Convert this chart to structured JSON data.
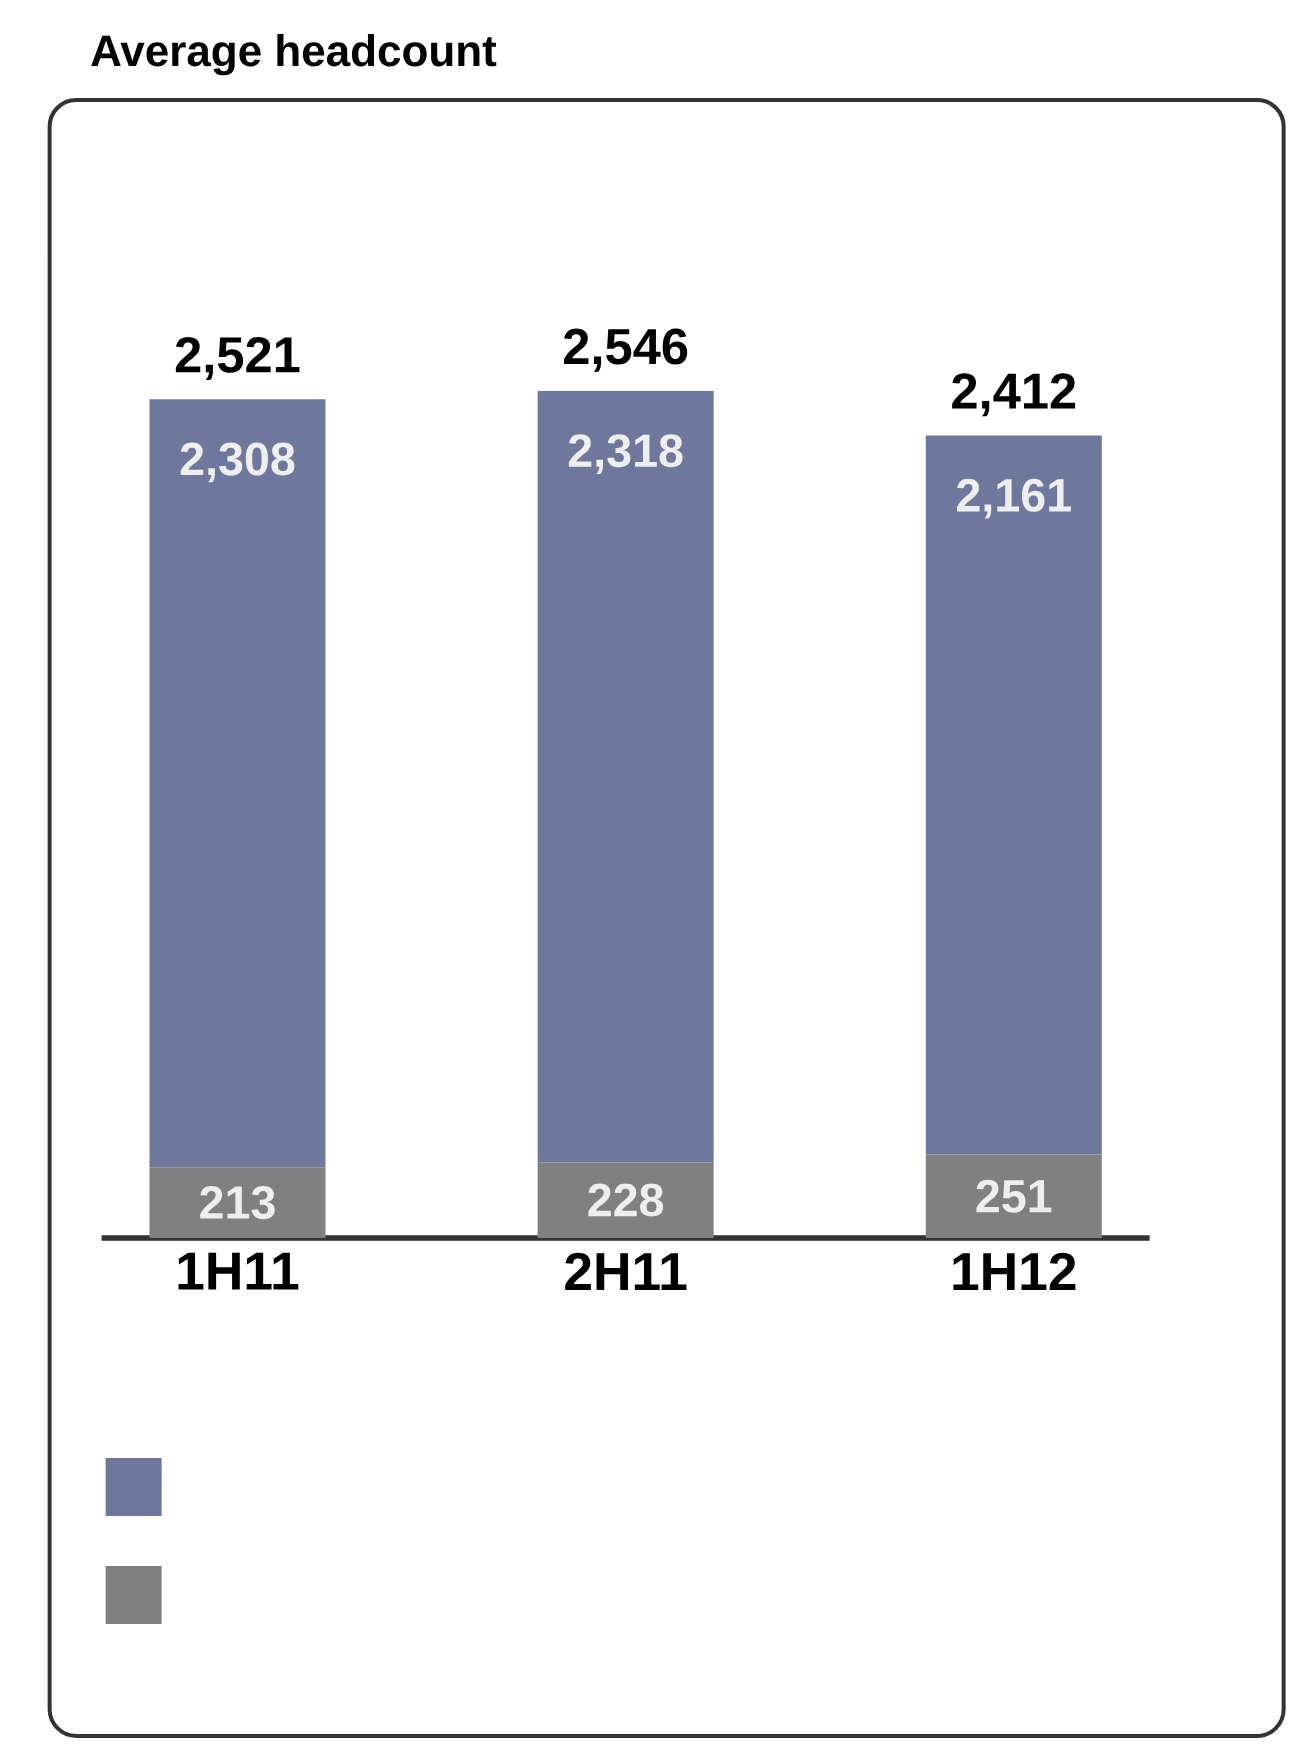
{
  "chart_data": {
    "type": "bar",
    "title": "Average headcount",
    "categories": [
      "1H11",
      "2H11",
      "1H12"
    ],
    "stacked": true,
    "series": [
      {
        "color": "#808080",
        "values": [
          213,
          228,
          251
        ],
        "value_labels": [
          "213",
          "228",
          "251"
        ]
      },
      {
        "color": "#6e789c",
        "values": [
          2308,
          2318,
          2161
        ],
        "value_labels": [
          "2,308",
          "2,318",
          "2,161"
        ]
      }
    ],
    "totals": [
      "2,521",
      "2,546",
      "2,412"
    ],
    "tick_labels": "x"
  }
}
